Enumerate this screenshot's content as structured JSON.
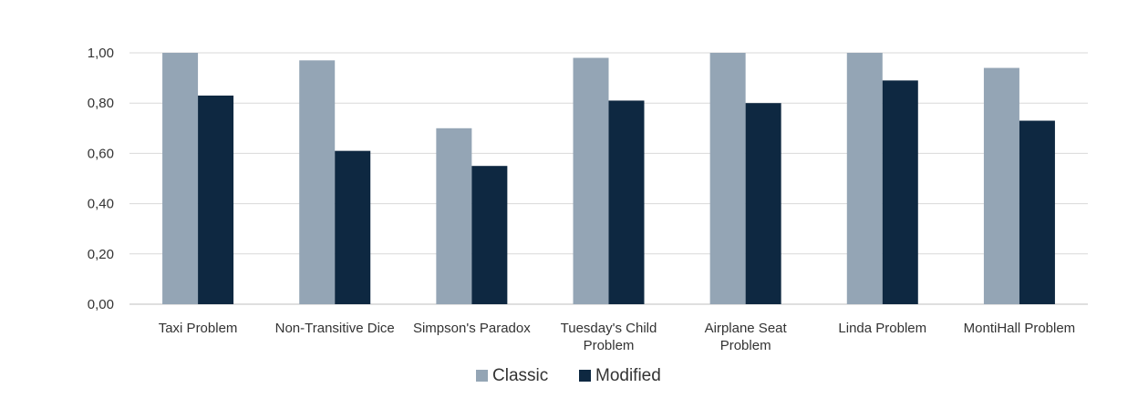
{
  "chart_data": {
    "type": "bar",
    "categories": [
      [
        "Taxi Problem"
      ],
      [
        "Non-Transitive Dice"
      ],
      [
        "Simpson's Paradox"
      ],
      [
        "Tuesday's Child",
        "Problem"
      ],
      [
        "Airplane Seat",
        "Problem"
      ],
      [
        "Linda Problem"
      ],
      [
        "MontiHall Problem"
      ]
    ],
    "series": [
      {
        "name": "Classic",
        "color": "#94A5B5",
        "values": [
          1.0,
          0.97,
          0.7,
          0.98,
          1.0,
          1.0,
          0.94
        ]
      },
      {
        "name": "Modified",
        "color": "#0E2841",
        "values": [
          0.83,
          0.61,
          0.55,
          0.81,
          0.8,
          0.89,
          0.73
        ]
      }
    ],
    "ylim": [
      0,
      1
    ],
    "yticks": [
      "0,00",
      "0,20",
      "0,40",
      "0,60",
      "0,80",
      "1,00"
    ],
    "grid": true,
    "gridColor": "#D9D9D9",
    "legend": "bottom"
  }
}
